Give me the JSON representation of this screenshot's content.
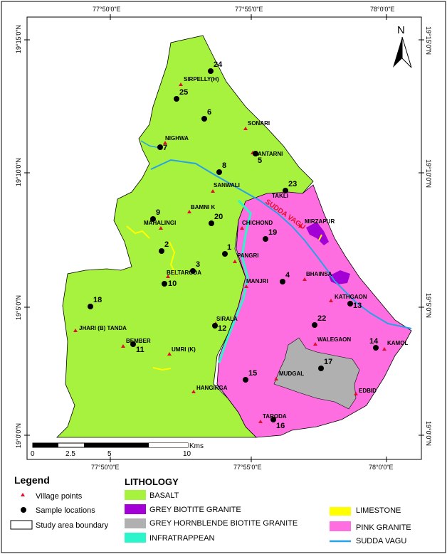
{
  "map": {
    "top_ticks": [
      "77°50'0\"E",
      "77°55'0\"E",
      "78°0'0\"E"
    ],
    "bottom_ticks": [
      "77°50'0\"E",
      "77°55'0\"E",
      "78°0'0\"E"
    ],
    "left_ticks": [
      "19°15'0\"N",
      "19°10'0\"N",
      "19°5'0\"N",
      "19°0'0\"N"
    ],
    "right_ticks": [
      "19°15'0\"N",
      "19°10'0\"N",
      "19°5'0\"N",
      "19°0'0\"N"
    ],
    "north_label": "N",
    "river_label": "SUDDA VAGU",
    "scalebar": {
      "ticks": [
        "0",
        "2.5",
        "5",
        "10"
      ],
      "unit": "Kms"
    },
    "villages": [
      {
        "id": "sirpelly",
        "name": "SIRPELLY(H)"
      },
      {
        "id": "sonari",
        "name": "SONARI"
      },
      {
        "id": "nighwa",
        "name": "NIGHWA"
      },
      {
        "id": "antarni",
        "name": "ANTARNI"
      },
      {
        "id": "sanwali",
        "name": "SANWALI"
      },
      {
        "id": "takli",
        "name": "TAKLI"
      },
      {
        "id": "bamnik",
        "name": "BAMNI K"
      },
      {
        "id": "mahalingi",
        "name": "MAHALINGI"
      },
      {
        "id": "chichond",
        "name": "CHICHOND"
      },
      {
        "id": "mirzapur",
        "name": "MIRZAPUR"
      },
      {
        "id": "pangri",
        "name": "PANGRI"
      },
      {
        "id": "beltaroda",
        "name": "BELTARODA"
      },
      {
        "id": "bhainsa",
        "name": "BHAINSA"
      },
      {
        "id": "manjri",
        "name": "MANJRI"
      },
      {
        "id": "kathgaon",
        "name": "KATHGAON"
      },
      {
        "id": "sirala",
        "name": "SIRALA"
      },
      {
        "id": "jhari",
        "name": "JHARI (B) TANDA"
      },
      {
        "id": "bember",
        "name": "BEMBER"
      },
      {
        "id": "walegaon",
        "name": "WALEGAON"
      },
      {
        "id": "kamol",
        "name": "KAMOL"
      },
      {
        "id": "umri",
        "name": "UMRI (K)"
      },
      {
        "id": "mudgal",
        "name": "MUDGAL"
      },
      {
        "id": "edbid",
        "name": "EDBID"
      },
      {
        "id": "hangirga",
        "name": "HANGIRGA"
      },
      {
        "id": "taroda",
        "name": "TARODA"
      }
    ],
    "samples": [
      "24",
      "25",
      "6",
      "7",
      "5",
      "8",
      "23",
      "9",
      "20",
      "19",
      "2",
      "1",
      "3",
      "10",
      "4",
      "13",
      "18",
      "12",
      "22",
      "11",
      "14",
      "17",
      "15",
      "16"
    ]
  },
  "legend": {
    "title": "Legend",
    "village": "Village points",
    "sample": "Sample locations",
    "boundary": "Study area boundary"
  },
  "lithology": {
    "title": "LITHOLOGY",
    "items": [
      {
        "label": "BASALT",
        "color": "#a6f23f"
      },
      {
        "label": "GREY BIOTITE GRANITE",
        "color": "#a300d6"
      },
      {
        "label": "GREY HORNBLENDE BIOTITE GRANITE",
        "color": "#b0b0b0"
      },
      {
        "label": "INFRATRAPPEAN",
        "color": "#2cf5cc"
      },
      {
        "label": "LIMESTONE",
        "color": "#ffff00"
      },
      {
        "label": "PINK GRANITE",
        "color": "#ff6ee0"
      },
      {
        "label": "SUDDA VAGU",
        "color": "#2aa0e6"
      }
    ]
  }
}
